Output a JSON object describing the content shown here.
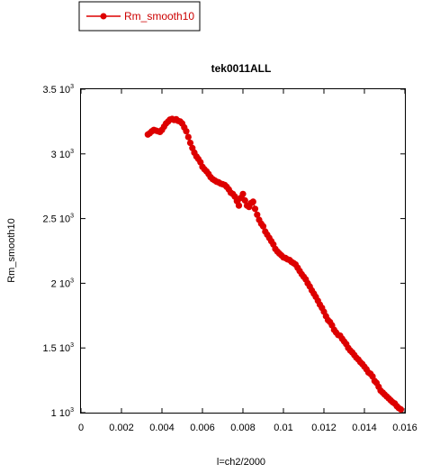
{
  "chart_data": {
    "type": "scatter",
    "title": "tek0011ALL",
    "xlabel": "l=ch2/2000",
    "ylabel": "Rm_smooth10",
    "xlim": [
      0,
      0.016
    ],
    "ylim": [
      1000,
      3500
    ],
    "x_ticks": [
      {
        "value": 0,
        "label": "0"
      },
      {
        "value": 0.002,
        "label": "0.002"
      },
      {
        "value": 0.004,
        "label": "0.004"
      },
      {
        "value": 0.006,
        "label": "0.006"
      },
      {
        "value": 0.008,
        "label": "0.008"
      },
      {
        "value": 0.01,
        "label": "0.01"
      },
      {
        "value": 0.012,
        "label": "0.012"
      },
      {
        "value": 0.014,
        "label": "0.014"
      },
      {
        "value": 0.016,
        "label": "0.016"
      }
    ],
    "y_ticks": [
      {
        "value": 1000,
        "mant": "1",
        "exp": "3"
      },
      {
        "value": 1500,
        "mant": "1.5",
        "exp": "3"
      },
      {
        "value": 2000,
        "mant": "2",
        "exp": "3"
      },
      {
        "value": 2500,
        "mant": "2.5",
        "exp": "3"
      },
      {
        "value": 3000,
        "mant": "3",
        "exp": "3"
      },
      {
        "value": 3500,
        "mant": "3.5",
        "exp": "3"
      }
    ],
    "grid": false,
    "legend_position": "top-left",
    "series": [
      {
        "name": "Rm_smooth10",
        "color": "#dd0000",
        "marker": "circle",
        "x": [
          0.0033,
          0.0034,
          0.0035,
          0.0036,
          0.0037,
          0.0038,
          0.0039,
          0.004,
          0.0041,
          0.0042,
          0.0043,
          0.0044,
          0.0045,
          0.0046,
          0.0047,
          0.0048,
          0.0049,
          0.005,
          0.0051,
          0.0052,
          0.0053,
          0.0054,
          0.0055,
          0.0056,
          0.0057,
          0.0058,
          0.0059,
          0.006,
          0.0061,
          0.0062,
          0.0063,
          0.0064,
          0.0065,
          0.0066,
          0.0067,
          0.0068,
          0.0069,
          0.007,
          0.0071,
          0.0072,
          0.0073,
          0.0074,
          0.0075,
          0.0076,
          0.0077,
          0.0078,
          0.0079,
          0.008,
          0.0081,
          0.0082,
          0.0083,
          0.0084,
          0.0085,
          0.0086,
          0.0087,
          0.0088,
          0.0089,
          0.009,
          0.0091,
          0.0092,
          0.0093,
          0.0094,
          0.0095,
          0.0096,
          0.0097,
          0.0098,
          0.0099,
          0.01,
          0.0101,
          0.0102,
          0.0103,
          0.0104,
          0.0105,
          0.0106,
          0.0107,
          0.0108,
          0.0109,
          0.011,
          0.0111,
          0.0112,
          0.0113,
          0.0114,
          0.0115,
          0.0116,
          0.0117,
          0.0118,
          0.0119,
          0.012,
          0.0121,
          0.0122,
          0.0123,
          0.0124,
          0.0125,
          0.0126,
          0.0127,
          0.0128,
          0.0129,
          0.013,
          0.0131,
          0.0132,
          0.0133,
          0.0134,
          0.0135,
          0.0136,
          0.0137,
          0.0138,
          0.0139,
          0.014,
          0.0141,
          0.0142,
          0.0143,
          0.0144,
          0.0145,
          0.0146,
          0.0147,
          0.0148,
          0.0149,
          0.015,
          0.0151,
          0.0152,
          0.0153,
          0.0154,
          0.0155,
          0.0156,
          0.0157,
          0.0158
        ],
        "y": [
          3150,
          3160,
          3175,
          3185,
          3180,
          3175,
          3170,
          3185,
          3210,
          3235,
          3250,
          3265,
          3270,
          3262,
          3268,
          3255,
          3250,
          3235,
          3205,
          3175,
          3130,
          3085,
          3045,
          3010,
          2980,
          2960,
          2935,
          2900,
          2880,
          2865,
          2845,
          2820,
          2805,
          2795,
          2785,
          2780,
          2770,
          2765,
          2760,
          2745,
          2725,
          2700,
          2690,
          2670,
          2635,
          2600,
          2660,
          2690,
          2640,
          2600,
          2590,
          2620,
          2630,
          2575,
          2530,
          2490,
          2460,
          2440,
          2400,
          2375,
          2350,
          2325,
          2300,
          2265,
          2245,
          2230,
          2215,
          2200,
          2195,
          2185,
          2180,
          2165,
          2155,
          2145,
          2120,
          2095,
          2070,
          2050,
          2030,
          2000,
          1975,
          1945,
          1920,
          1895,
          1865,
          1835,
          1810,
          1780,
          1745,
          1715,
          1700,
          1675,
          1640,
          1620,
          1600,
          1595,
          1570,
          1550,
          1530,
          1500,
          1480,
          1465,
          1445,
          1425,
          1410,
          1390,
          1375,
          1355,
          1335,
          1310,
          1300,
          1280,
          1245,
          1230,
          1200,
          1170,
          1155,
          1140,
          1125,
          1110,
          1095,
          1080,
          1070,
          1050,
          1035,
          1025
        ]
      }
    ]
  }
}
